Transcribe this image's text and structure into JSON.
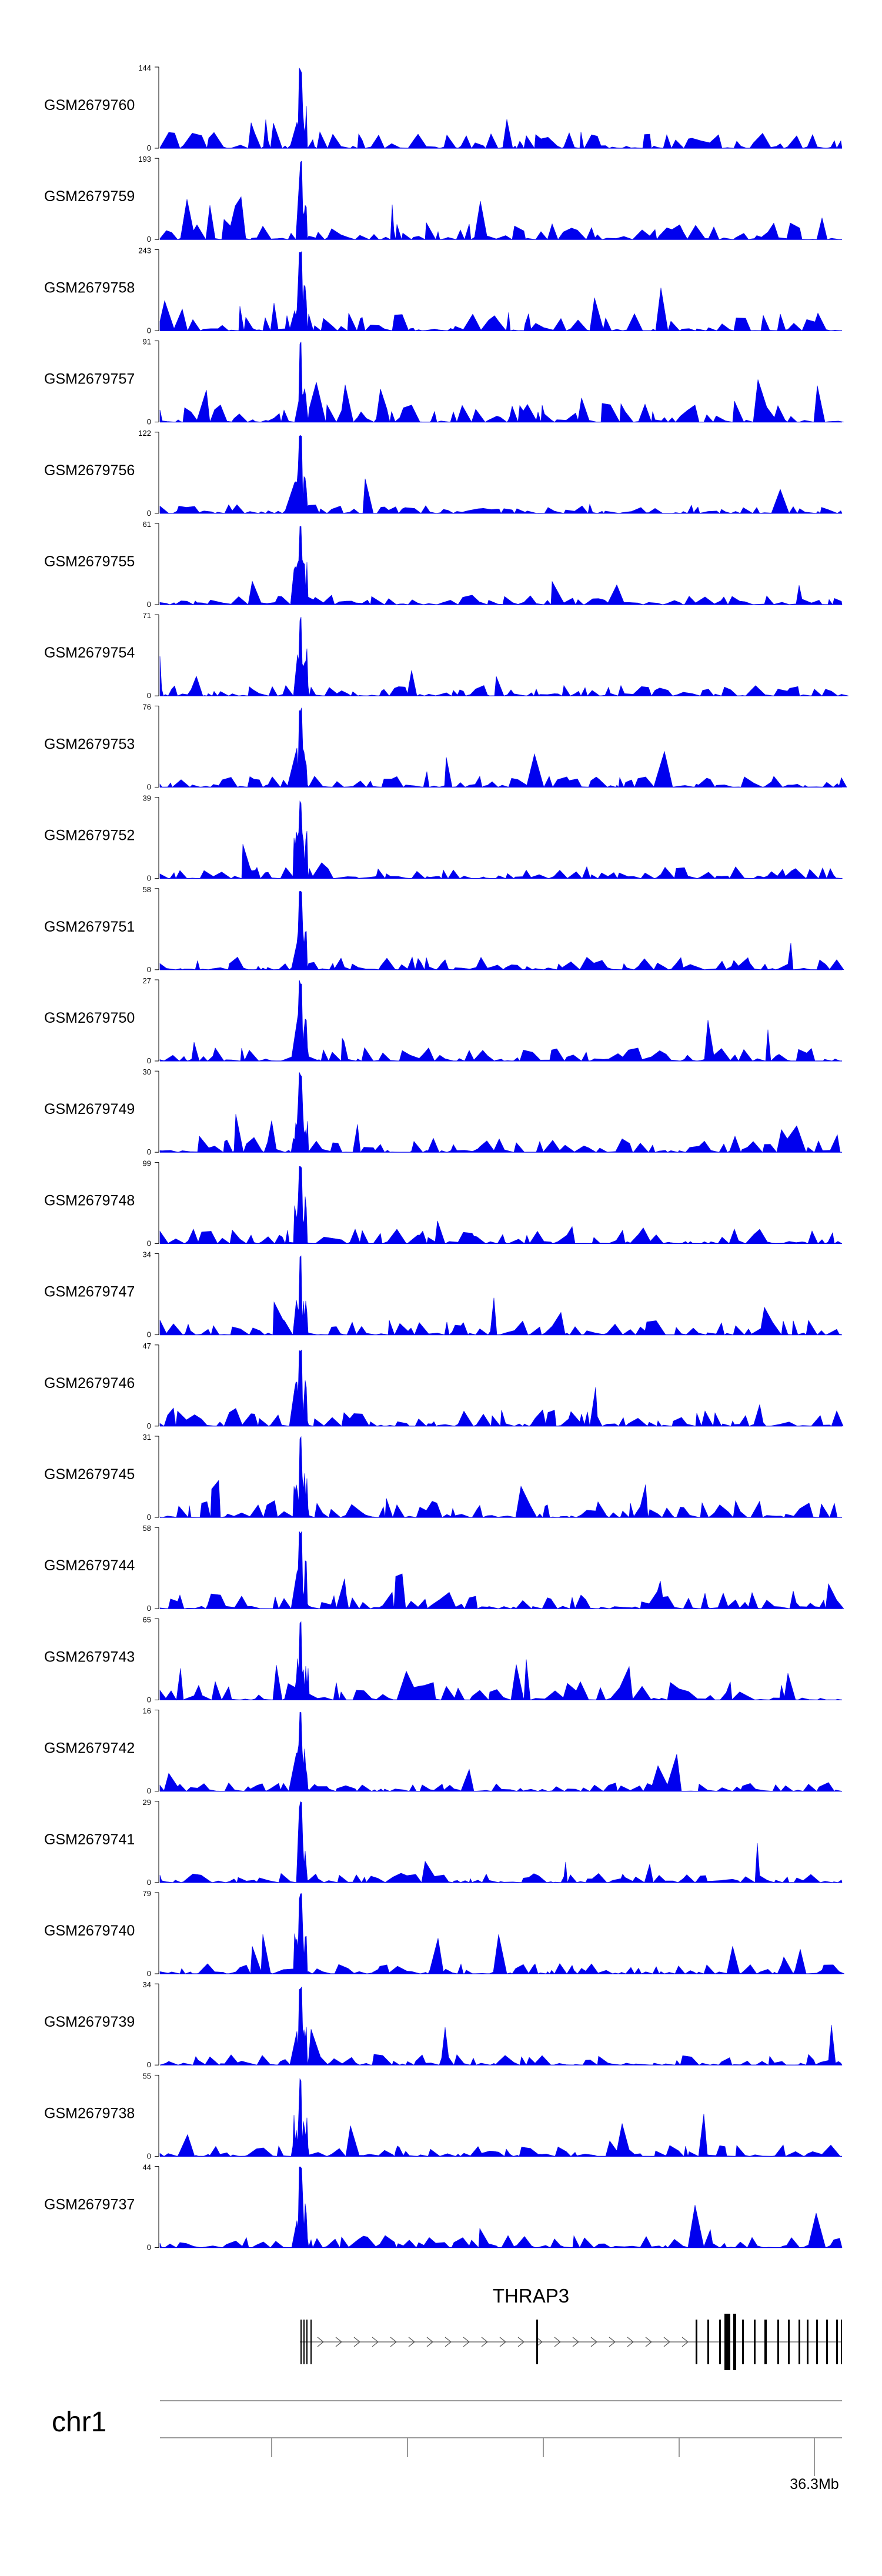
{
  "chart_data": {
    "type": "area",
    "track_color": "#0000EE",
    "tracks": [
      {
        "name": "GSM2679760",
        "max": 144,
        "min": 0
      },
      {
        "name": "GSM2679759",
        "max": 193,
        "min": 0
      },
      {
        "name": "GSM2679758",
        "max": 243,
        "min": 0
      },
      {
        "name": "GSM2679757",
        "max": 91,
        "min": 0
      },
      {
        "name": "GSM2679756",
        "max": 122,
        "min": 0
      },
      {
        "name": "GSM2679755",
        "max": 61,
        "min": 0
      },
      {
        "name": "GSM2679754",
        "max": 71,
        "min": 0
      },
      {
        "name": "GSM2679753",
        "max": 76,
        "min": 0
      },
      {
        "name": "GSM2679752",
        "max": 39,
        "min": 0
      },
      {
        "name": "GSM2679751",
        "max": 58,
        "min": 0
      },
      {
        "name": "GSM2679750",
        "max": 27,
        "min": 0
      },
      {
        "name": "GSM2679749",
        "max": 30,
        "min": 0
      },
      {
        "name": "GSM2679748",
        "max": 99,
        "min": 0
      },
      {
        "name": "GSM2679747",
        "max": 34,
        "min": 0
      },
      {
        "name": "GSM2679746",
        "max": 47,
        "min": 0
      },
      {
        "name": "GSM2679745",
        "max": 31,
        "min": 0
      },
      {
        "name": "GSM2679744",
        "max": 58,
        "min": 0
      },
      {
        "name": "GSM2679743",
        "max": 65,
        "min": 0
      },
      {
        "name": "GSM2679742",
        "max": 16,
        "min": 0
      },
      {
        "name": "GSM2679741",
        "max": 29,
        "min": 0
      },
      {
        "name": "GSM2679740",
        "max": 79,
        "min": 0
      },
      {
        "name": "GSM2679739",
        "max": 34,
        "min": 0
      },
      {
        "name": "GSM2679738",
        "max": 55,
        "min": 0
      },
      {
        "name": "GSM2679737",
        "max": 44,
        "min": 0
      }
    ],
    "gene": {
      "name": "THRAP3",
      "strand": "+"
    },
    "chromosome": "chr1",
    "axis_tick_label": "36.3Mb"
  }
}
